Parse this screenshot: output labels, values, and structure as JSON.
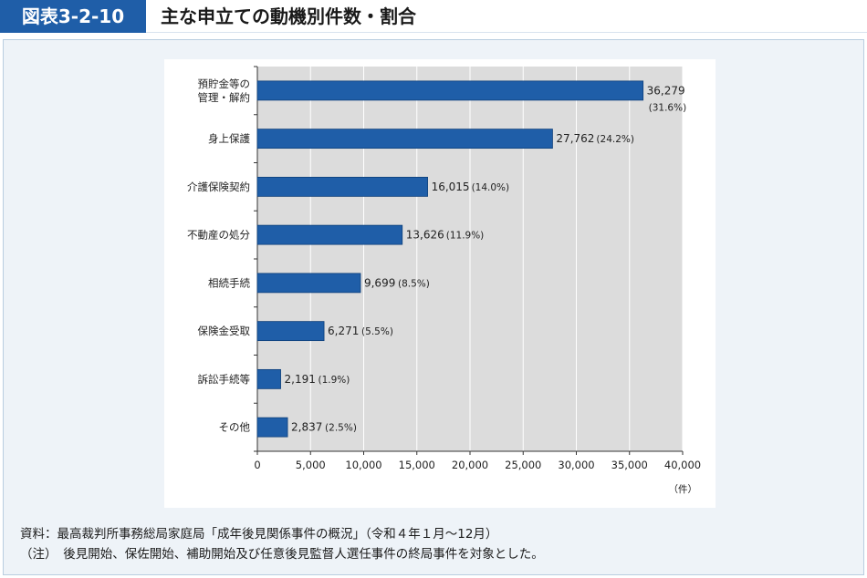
{
  "header": {
    "badge": "図表3-2-10",
    "title": "主な申立ての動機別件数・割合"
  },
  "chart_data": {
    "type": "bar",
    "orientation": "horizontal",
    "categories": [
      [
        "預貯金等の",
        "管理・解約"
      ],
      [
        "身上保護"
      ],
      [
        "介護保険契約"
      ],
      [
        "不動産の処分"
      ],
      [
        "相続手続"
      ],
      [
        "保険金受取"
      ],
      [
        "訴訟手続等"
      ],
      [
        "その他"
      ]
    ],
    "values": [
      36279,
      27762,
      16015,
      13626,
      9699,
      6271,
      2191,
      2837
    ],
    "value_labels": [
      "36,279",
      "27,762",
      "16,015",
      "13,626",
      "9,699",
      "6,271",
      "2,191",
      "2,837"
    ],
    "percent_labels": [
      "(31.6%)",
      "(24.2%)",
      "(14.0%)",
      "(11.9%)",
      "(8.5%)",
      "(5.5%)",
      "(1.9%)",
      "(2.5%)"
    ],
    "xlim": [
      0,
      40000
    ],
    "xticks": [
      0,
      5000,
      10000,
      15000,
      20000,
      25000,
      30000,
      35000,
      40000
    ],
    "xtick_labels": [
      "0",
      "5,000",
      "10,000",
      "15,000",
      "20,000",
      "25,000",
      "30,000",
      "35,000",
      "40,000"
    ],
    "xunit": "（件）",
    "grid": true,
    "bar_color": "#1f5ea8",
    "plot_background": "#dcdcdc"
  },
  "notes": {
    "source": "資料：最高裁判所事務総局家庭局「成年後見関係事件の概況」（令和４年１月～12月）",
    "remark": "（注）　後見開始、保佐開始、補助開始及び任意後見監督人選任事件の終局事件を対象とした。"
  }
}
